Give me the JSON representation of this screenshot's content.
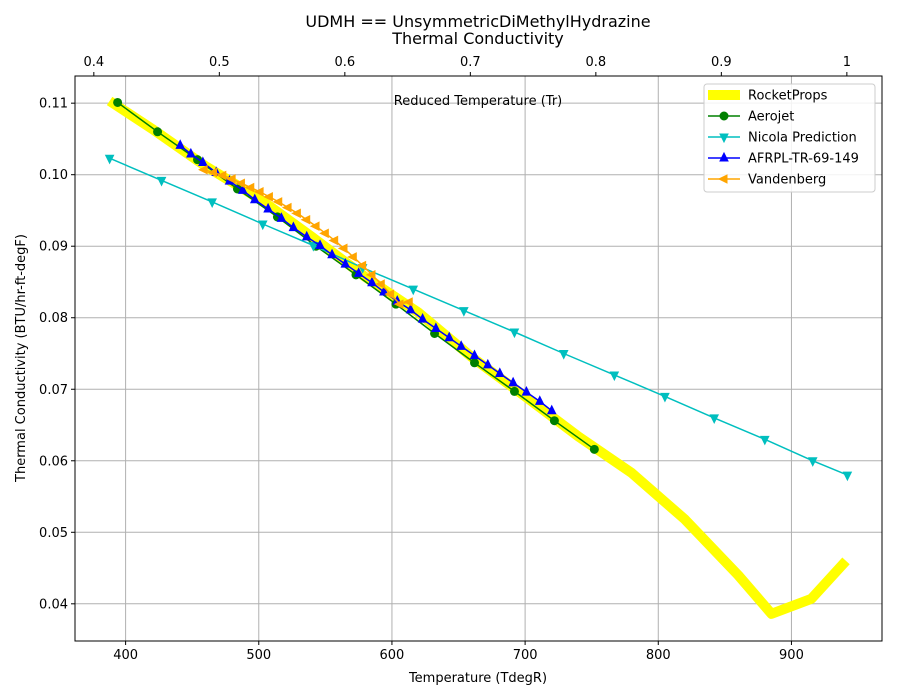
{
  "chart_data": {
    "type": "line",
    "title": "UDMH == UnsymmetricDiMethylHydrazine",
    "subtitle": "Thermal Conductivity",
    "xlabel": "Temperature (TdegR)",
    "ylabel": "Thermal Conductivity (BTU/hr-ft-degF)",
    "top_xlabel": "Reduced Temperature (Tr)",
    "xlim": [
      362,
      968
    ],
    "ylim": [
      0.0348,
      0.1138
    ],
    "top_xlim": [
      0.385,
      1.028
    ],
    "x_ticks": [
      400,
      500,
      600,
      700,
      800,
      900
    ],
    "y_ticks": [
      0.04,
      0.05,
      0.06,
      0.07,
      0.08,
      0.09,
      0.1,
      0.11
    ],
    "y_tick_labels": [
      "0.04",
      "0.05",
      "0.06",
      "0.07",
      "0.08",
      "0.09",
      "0.10",
      "0.11"
    ],
    "top_ticks": [
      0.4,
      0.5,
      0.6,
      0.7,
      0.8,
      0.9,
      1.0
    ],
    "grid": true,
    "legend_position": "top-right",
    "series": [
      {
        "name": "RocketProps",
        "color": "#ffff00",
        "marker": "none",
        "line_width": 10,
        "x": [
          388,
          420,
          460,
          500,
          540,
          580,
          620,
          660,
          700,
          740,
          780,
          820,
          860,
          885,
          915,
          941
        ],
        "y": [
          0.1103,
          0.1064,
          0.1012,
          0.0967,
          0.0913,
          0.0857,
          0.0807,
          0.0745,
          0.069,
          0.0634,
          0.0583,
          0.0518,
          0.044,
          0.0386,
          0.0407,
          0.046
        ]
      },
      {
        "name": "Aerojet",
        "color": "#008000",
        "marker": "circle",
        "line_width": 1.5,
        "x": [
          394,
          424,
          454,
          484,
          514,
          543,
          573,
          603,
          632,
          662,
          692,
          722,
          752
        ],
        "y": [
          0.1101,
          0.106,
          0.1021,
          0.098,
          0.0941,
          0.09,
          0.086,
          0.0819,
          0.0778,
          0.0737,
          0.0697,
          0.0656,
          0.0616
        ]
      },
      {
        "name": "Nicola Prediction",
        "color": "#00bfbf",
        "marker": "triangle-down",
        "line_width": 1.5,
        "x": [
          388,
          427,
          465,
          503,
          541,
          578,
          616,
          654,
          692,
          729,
          767,
          805,
          842,
          880,
          916,
          942
        ],
        "y": [
          0.1023,
          0.0992,
          0.0962,
          0.0931,
          0.0901,
          0.087,
          0.084,
          0.081,
          0.078,
          0.075,
          0.072,
          0.069,
          0.066,
          0.063,
          0.06,
          0.058
        ]
      },
      {
        "name": "AFRPL-TR-69-149",
        "color": "#0000ff",
        "marker": "triangle-up",
        "line_width": 1.5,
        "x": [
          441,
          449,
          458,
          468,
          478,
          488,
          497,
          507,
          517,
          526,
          536,
          546,
          555,
          565,
          575,
          585,
          594,
          604,
          614,
          623,
          633,
          643,
          652,
          662,
          672,
          681,
          691,
          701,
          711,
          720
        ],
        "y": [
          0.1041,
          0.1029,
          0.1017,
          0.1003,
          0.0991,
          0.0978,
          0.0965,
          0.0952,
          0.0939,
          0.0926,
          0.0913,
          0.0901,
          0.0888,
          0.0875,
          0.0862,
          0.0849,
          0.0836,
          0.0823,
          0.0811,
          0.0798,
          0.0785,
          0.0772,
          0.076,
          0.0747,
          0.0734,
          0.0722,
          0.0709,
          0.0696,
          0.0683,
          0.067
        ]
      },
      {
        "name": "Vandenberg",
        "color": "#ffa500",
        "marker": "triangle-left",
        "line_width": 1.5,
        "x": [
          459,
          466,
          473,
          480,
          487,
          494,
          501,
          508,
          515,
          522,
          529,
          536,
          543,
          550,
          557,
          564,
          571,
          578,
          585,
          592,
          599,
          606,
          613
        ],
        "y": [
          0.1007,
          0.1003,
          0.0999,
          0.0994,
          0.0988,
          0.0982,
          0.0976,
          0.0969,
          0.0962,
          0.0954,
          0.0946,
          0.0937,
          0.0928,
          0.0918,
          0.0908,
          0.0897,
          0.0885,
          0.0873,
          0.086,
          0.0847,
          0.0833,
          0.0819,
          0.0822
        ]
      }
    ]
  }
}
